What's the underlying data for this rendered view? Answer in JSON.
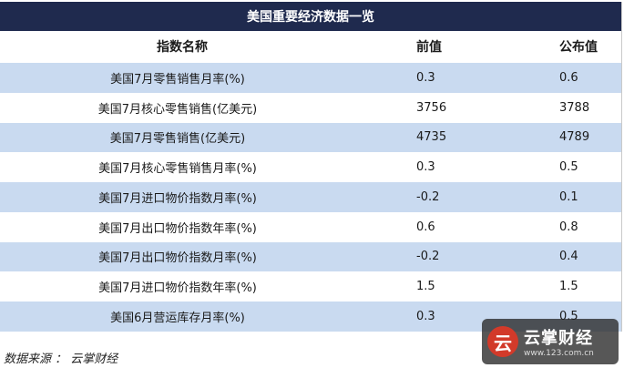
{
  "title": "美国重要经济数据一览",
  "headers": {
    "name": "指数名称",
    "prev": "前值",
    "actual": "公布值"
  },
  "rows": [
    {
      "name": "美国7月零售销售月率(%)",
      "prev": "0.3",
      "actual": "0.6"
    },
    {
      "name": "美国7月核心零售销售(亿美元)",
      "prev": "3756",
      "actual": "3788"
    },
    {
      "name": "美国7月零售销售(亿美元)",
      "prev": "4735",
      "actual": "4789"
    },
    {
      "name": "美国7月核心零售销售月率(%)",
      "prev": "0.3",
      "actual": "0.5"
    },
    {
      "name": "美国7月进口物价指数月率(%)",
      "prev": "-0.2",
      "actual": "0.1"
    },
    {
      "name": "美国7月出口物价指数年率(%)",
      "prev": "0.6",
      "actual": "0.8"
    },
    {
      "name": "美国7月出口物价指数月率(%)",
      "prev": "-0.2",
      "actual": "0.4"
    },
    {
      "name": "美国7月进口物价指数年率(%)",
      "prev": "1.5",
      "actual": "1.5"
    },
    {
      "name": "美国6月营运库存月率(%)",
      "prev": "0.3",
      "actual": "0.5"
    }
  ],
  "source": "数据来源 ： 云掌财经",
  "watermark": {
    "name": "云掌财经",
    "url": "www.123.com.cn"
  },
  "colors": {
    "title_bg": "#1f2a4e",
    "row_shade": "#c9daf0"
  }
}
